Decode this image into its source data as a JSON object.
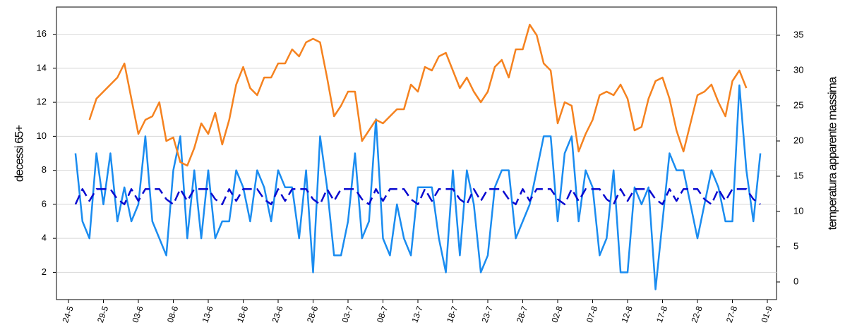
{
  "chart_data": {
    "type": "line",
    "ylabel": "decessi 65+",
    "y2label": "temperatura apparente massima",
    "categories": [
      "24-5",
      null,
      null,
      null,
      null,
      "29-5",
      null,
      null,
      null,
      null,
      "03-6",
      null,
      null,
      null,
      null,
      "08-6",
      null,
      null,
      null,
      null,
      "13-6",
      null,
      null,
      null,
      null,
      "18-6",
      null,
      null,
      null,
      null,
      "23-6",
      null,
      null,
      null,
      null,
      "28-6",
      null,
      null,
      null,
      null,
      "03-7",
      null,
      null,
      null,
      null,
      "08-7",
      null,
      null,
      null,
      null,
      "13-7",
      null,
      null,
      null,
      null,
      "18-7",
      null,
      null,
      null,
      null,
      "23-7",
      null,
      null,
      null,
      null,
      "28-7",
      null,
      null,
      null,
      null,
      "02-8",
      null,
      null,
      null,
      null,
      "07-8",
      null,
      null,
      null,
      null,
      "12-8",
      null,
      null,
      null,
      null,
      "17-8",
      null,
      null,
      null,
      null,
      "22-8",
      null,
      null,
      null,
      null,
      "27-8",
      null,
      null,
      null,
      null,
      "01-9"
    ],
    "ylim": [
      0.4,
      17.6
    ],
    "yticks": [
      2,
      4,
      6,
      8,
      10,
      12,
      14,
      16
    ],
    "y2lim": [
      -2.5,
      39
    ],
    "y2ticks": [
      0,
      5,
      10,
      15,
      20,
      25,
      30,
      35
    ],
    "grid": true,
    "series": [
      {
        "color": "#1a8cf0",
        "style": "solid",
        "axis": "y",
        "values": [
          null,
          9,
          5,
          4,
          9,
          6,
          9,
          5,
          7,
          5,
          6,
          10,
          5,
          4,
          3,
          8,
          10,
          4,
          8,
          4,
          8,
          4,
          5,
          5,
          8,
          7,
          5,
          8,
          7,
          5,
          8,
          7,
          7,
          4,
          8,
          2,
          10,
          7,
          3,
          3,
          5,
          9,
          4,
          5,
          11,
          4,
          3,
          6,
          4,
          3,
          7,
          7,
          7,
          4,
          2,
          8,
          3,
          8,
          6,
          2,
          3,
          7,
          8,
          8,
          4,
          5,
          6,
          8,
          10,
          10,
          5,
          9,
          10,
          5,
          8,
          7,
          3,
          4,
          8,
          2,
          2,
          7,
          6,
          7,
          1,
          5,
          9,
          8,
          8,
          6,
          4,
          6,
          8,
          7,
          5,
          5,
          13,
          8,
          5,
          9,
          null
        ]
      },
      {
        "color": "#0a0ad0",
        "style": "dashed",
        "axis": "y",
        "values": [
          null,
          6.0,
          6.9,
          6.2,
          6.9,
          6.9,
          6.9,
          6.3,
          6.0,
          6.9,
          6.2,
          6.9,
          6.9,
          6.9,
          6.3,
          6.0,
          6.9,
          6.2,
          6.9,
          6.9,
          6.9,
          6.3,
          6.0,
          6.9,
          6.2,
          6.9,
          6.9,
          6.9,
          6.3,
          6.0,
          6.9,
          6.2,
          6.9,
          6.9,
          6.9,
          6.3,
          6.0,
          6.9,
          6.2,
          6.9,
          6.9,
          6.9,
          6.3,
          6.0,
          6.9,
          6.2,
          6.9,
          6.9,
          6.9,
          6.3,
          6.0,
          6.9,
          6.2,
          6.9,
          6.9,
          6.9,
          6.3,
          6.0,
          6.9,
          6.2,
          6.9,
          6.9,
          6.9,
          6.3,
          6.0,
          6.9,
          6.2,
          6.9,
          6.9,
          6.9,
          6.3,
          6.0,
          6.9,
          6.2,
          6.9,
          6.9,
          6.9,
          6.3,
          6.0,
          6.9,
          6.2,
          6.9,
          6.9,
          6.9,
          6.3,
          6.0,
          6.9,
          6.2,
          6.9,
          6.9,
          6.9,
          6.3,
          6.0,
          6.9,
          6.2,
          6.9,
          6.9,
          6.9,
          6.3,
          6.0,
          null
        ]
      },
      {
        "color": "#f5821f",
        "style": "solid",
        "axis": "y2",
        "values": [
          null,
          null,
          null,
          23,
          26,
          27,
          28,
          29,
          31,
          26,
          21,
          23,
          23.5,
          25.5,
          20,
          20.5,
          17,
          16.5,
          19,
          22.5,
          21,
          24,
          19.5,
          23,
          28,
          30.5,
          27.5,
          26.5,
          29,
          29,
          31,
          31,
          33,
          32,
          34,
          34.5,
          34,
          29,
          23.5,
          25,
          27,
          27,
          20,
          21.5,
          23,
          22.5,
          23.5,
          24.5,
          24.5,
          28,
          27,
          30.5,
          30,
          32,
          32.5,
          30,
          27.5,
          29,
          27,
          25.5,
          27,
          30.5,
          31.5,
          29,
          33,
          33,
          36.5,
          35,
          31,
          30,
          22.5,
          25.5,
          25,
          18.5,
          21,
          23,
          26.5,
          27,
          26.5,
          28,
          26,
          21.5,
          22,
          26,
          28.5,
          29,
          26,
          21.5,
          18.5,
          22.5,
          26.5,
          27,
          28,
          25.5,
          23.5,
          28.5,
          30,
          27.5,
          null,
          null,
          null
        ]
      }
    ]
  }
}
